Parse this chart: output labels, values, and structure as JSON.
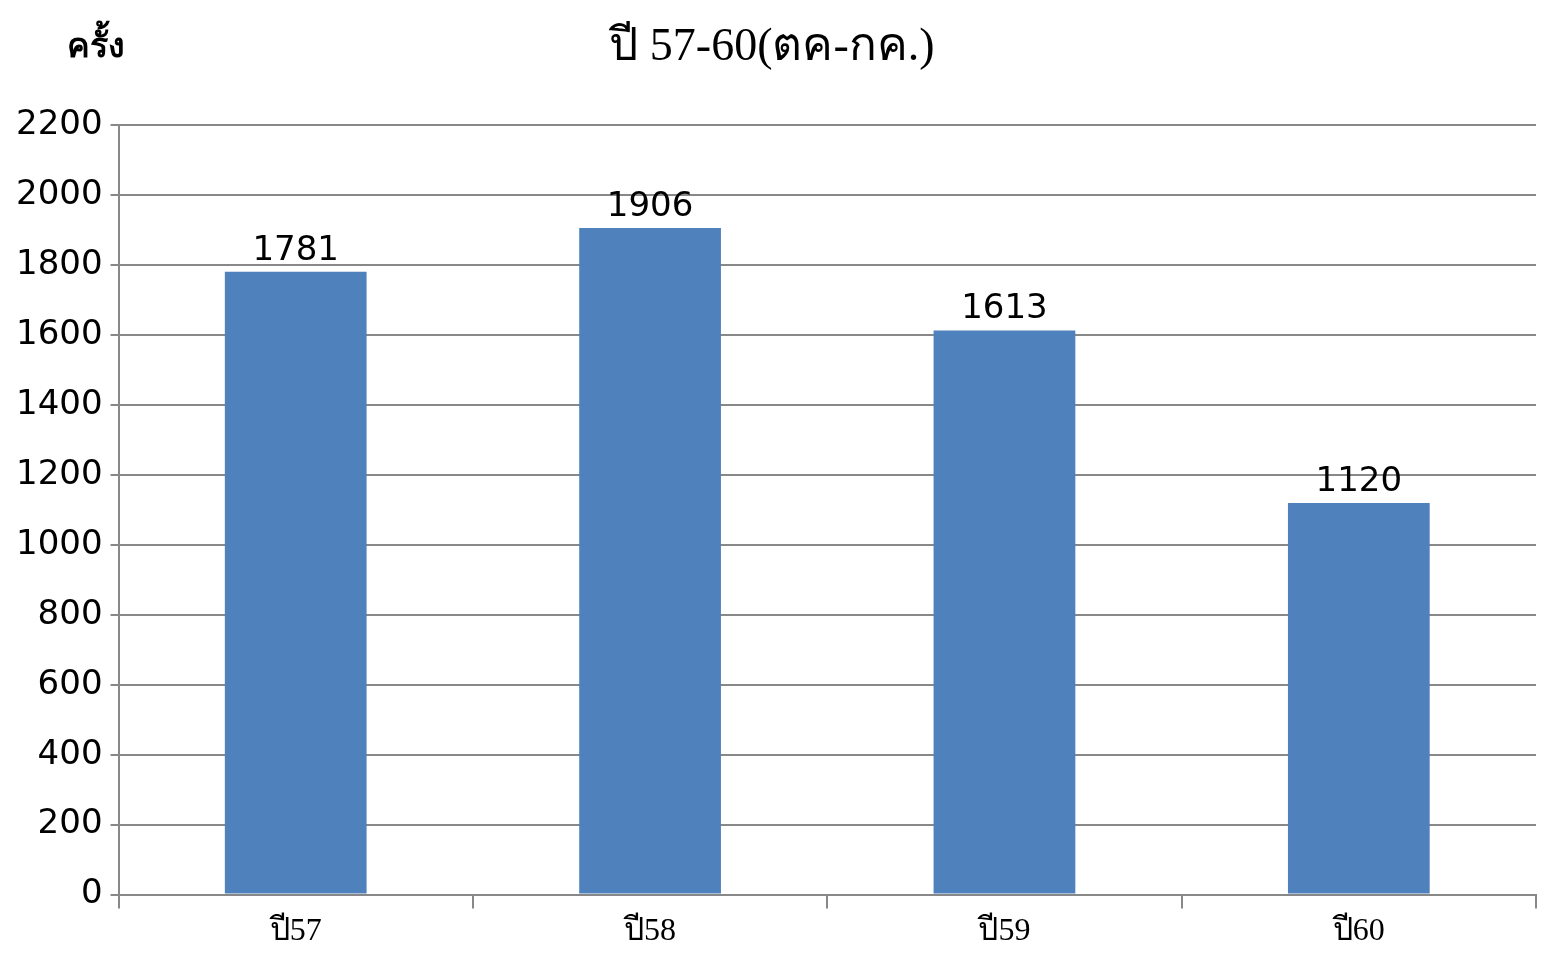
{
  "chart_data": {
    "type": "bar",
    "title": "ปี 57-60(ตค-กค.)",
    "ylabel": "ครั้ง",
    "categories": [
      "ปี57",
      "ปี58",
      "ปี59",
      "ปี60"
    ],
    "values": [
      1781,
      1906,
      1613,
      1120
    ],
    "color": "#4f81bd",
    "ylim": [
      0,
      2200
    ],
    "yticks": [
      0,
      200,
      400,
      600,
      800,
      1000,
      1200,
      1400,
      1600,
      1800,
      2000,
      2200
    ],
    "grid": "y",
    "data_labels": true,
    "legend": false
  }
}
